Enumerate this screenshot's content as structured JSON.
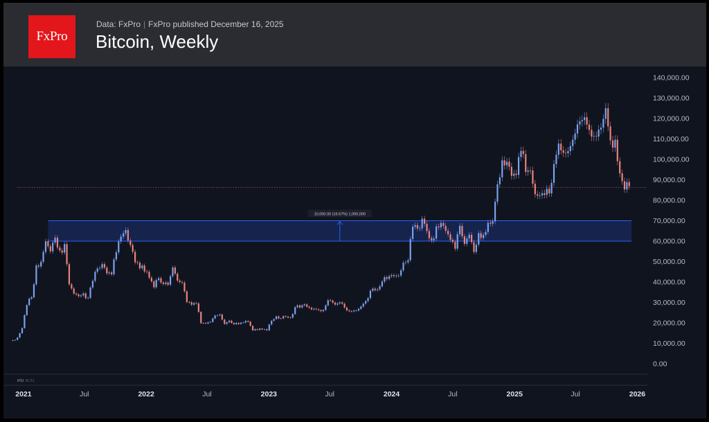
{
  "header": {
    "logo_text": "FxPro",
    "data_source": "Data: FxPro",
    "published": "FxPro published December 16, 2025",
    "title": "Bitcoin, Weekly"
  },
  "colors": {
    "background": "#10141f",
    "header_bg": "#2b2c31",
    "logo_red": "#e3161b",
    "up_candle": "#7ba2ee",
    "down_candle": "#e8847e",
    "zone_fill": "#1f3fa3",
    "zone_border": "#2b5fff",
    "price_line": "#e05555"
  },
  "chart_data": {
    "type": "candlestick",
    "title": "Bitcoin, Weekly",
    "y_tick_labels": [
      "140,000.00",
      "130,000.00",
      "120,000.00",
      "110,000.00",
      "100,000.00",
      "90,000.00",
      "80,000.00",
      "70,000.00",
      "60,000.00",
      "50,000.00",
      "40,000.00",
      "30,000.00",
      "20,000.00",
      "10,000.00",
      "0.00"
    ],
    "ylim": [
      0,
      140000
    ],
    "x_tick_labels": [
      "2021",
      "Jul",
      "2022",
      "Jul",
      "2023",
      "Jul",
      "2024",
      "Jul",
      "2025",
      "Jul",
      "2026"
    ],
    "xlim": [
      "2020-11-23",
      "2026-01-31"
    ],
    "current_price_line": 86300,
    "zone": {
      "low": 60000,
      "high": 70000,
      "start": "2021-03-15",
      "end": "2025-12-15"
    },
    "measure_label": "10,000.00 (16.67%) 1,000,000",
    "rsi_label": "RSI",
    "rsi_value": "36.51",
    "grid": false,
    "series": [
      {
        "values": [
          [
            "2020-11-30",
            11200
          ],
          [
            "2020-12-14",
            12500
          ],
          [
            "2020-12-28",
            18000
          ],
          [
            "2021-01-11",
            29000
          ],
          [
            "2021-01-25",
            33000
          ],
          [
            "2021-02-08",
            47000
          ],
          [
            "2021-02-22",
            49000
          ],
          [
            "2021-03-08",
            59000
          ],
          [
            "2021-03-22",
            56000
          ],
          [
            "2021-04-05",
            60000
          ],
          [
            "2021-04-19",
            54000
          ],
          [
            "2021-05-03",
            57000
          ],
          [
            "2021-05-17",
            38000
          ],
          [
            "2021-05-31",
            35000
          ],
          [
            "2021-06-14",
            34000
          ],
          [
            "2021-06-28",
            34500
          ],
          [
            "2021-07-12",
            31500
          ],
          [
            "2021-07-26",
            41000
          ],
          [
            "2021-08-09",
            47000
          ],
          [
            "2021-08-23",
            47500
          ],
          [
            "2021-09-06",
            45000
          ],
          [
            "2021-09-20",
            43500
          ],
          [
            "2021-10-04",
            56000
          ],
          [
            "2021-10-18",
            61000
          ],
          [
            "2021-11-01",
            64000
          ],
          [
            "2021-11-15",
            58000
          ],
          [
            "2021-11-29",
            50000
          ],
          [
            "2021-12-13",
            47000
          ],
          [
            "2021-12-27",
            46500
          ],
          [
            "2022-01-10",
            42000
          ],
          [
            "2022-01-24",
            38000
          ],
          [
            "2022-02-07",
            42000
          ],
          [
            "2022-02-21",
            39000
          ],
          [
            "2022-03-07",
            39000
          ],
          [
            "2022-03-21",
            47000
          ],
          [
            "2022-04-04",
            41000
          ],
          [
            "2022-04-18",
            39000
          ],
          [
            "2022-05-02",
            31000
          ],
          [
            "2022-05-16",
            29500
          ],
          [
            "2022-05-30",
            29500
          ],
          [
            "2022-06-13",
            20000
          ],
          [
            "2022-06-27",
            19500
          ],
          [
            "2022-07-11",
            21000
          ],
          [
            "2022-07-25",
            23500
          ],
          [
            "2022-08-08",
            24000
          ],
          [
            "2022-08-22",
            20000
          ],
          [
            "2022-09-05",
            21500
          ],
          [
            "2022-09-19",
            19500
          ],
          [
            "2022-10-03",
            19500
          ],
          [
            "2022-10-17",
            20500
          ],
          [
            "2022-10-31",
            20500
          ],
          [
            "2022-11-14",
            16500
          ],
          [
            "2022-11-28",
            17000
          ],
          [
            "2022-12-12",
            16800
          ],
          [
            "2022-12-26",
            16600
          ],
          [
            "2023-01-09",
            21000
          ],
          [
            "2023-01-23",
            23000
          ],
          [
            "2023-02-06",
            21800
          ],
          [
            "2023-02-20",
            23500
          ],
          [
            "2023-03-06",
            22000
          ],
          [
            "2023-03-20",
            28000
          ],
          [
            "2023-04-03",
            28000
          ],
          [
            "2023-04-17",
            29000
          ],
          [
            "2023-05-01",
            27500
          ],
          [
            "2023-05-15",
            27000
          ],
          [
            "2023-05-29",
            26500
          ],
          [
            "2023-06-12",
            26500
          ],
          [
            "2023-06-26",
            30500
          ],
          [
            "2023-07-10",
            30300
          ],
          [
            "2023-07-24",
            29300
          ],
          [
            "2023-08-07",
            29400
          ],
          [
            "2023-08-21",
            26000
          ],
          [
            "2023-09-04",
            25900
          ],
          [
            "2023-09-18",
            26500
          ],
          [
            "2023-10-02",
            28000
          ],
          [
            "2023-10-16",
            30000
          ],
          [
            "2023-10-30",
            35000
          ],
          [
            "2023-11-13",
            37000
          ],
          [
            "2023-11-27",
            38000
          ],
          [
            "2023-12-11",
            42000
          ],
          [
            "2023-12-25",
            42500
          ],
          [
            "2024-01-08",
            42500
          ],
          [
            "2024-01-22",
            42000
          ],
          [
            "2024-02-05",
            48000
          ],
          [
            "2024-02-19",
            52000
          ],
          [
            "2024-03-04",
            68000
          ],
          [
            "2024-03-18",
            65000
          ],
          [
            "2024-04-01",
            69000
          ],
          [
            "2024-04-15",
            64000
          ],
          [
            "2024-04-29",
            59000
          ],
          [
            "2024-05-13",
            67000
          ],
          [
            "2024-05-27",
            68000
          ],
          [
            "2024-06-10",
            66000
          ],
          [
            "2024-06-24",
            61000
          ],
          [
            "2024-07-08",
            58000
          ],
          [
            "2024-07-22",
            68000
          ],
          [
            "2024-08-05",
            58000
          ],
          [
            "2024-08-19",
            64000
          ],
          [
            "2024-09-02",
            54000
          ],
          [
            "2024-09-16",
            63000
          ],
          [
            "2024-09-30",
            62000
          ],
          [
            "2024-10-14",
            68000
          ],
          [
            "2024-10-28",
            70000
          ],
          [
            "2024-11-11",
            90000
          ],
          [
            "2024-11-25",
            97000
          ],
          [
            "2024-12-09",
            101000
          ],
          [
            "2024-12-23",
            94000
          ],
          [
            "2025-01-06",
            94500
          ],
          [
            "2025-01-20",
            105000
          ],
          [
            "2025-02-03",
            96000
          ],
          [
            "2025-02-17",
            96000
          ],
          [
            "2025-03-03",
            82000
          ],
          [
            "2025-03-17",
            84000
          ],
          [
            "2025-03-31",
            82000
          ],
          [
            "2025-04-14",
            85000
          ],
          [
            "2025-04-28",
            96000
          ],
          [
            "2025-05-12",
            106000
          ],
          [
            "2025-05-26",
            105000
          ],
          [
            "2025-06-09",
            106000
          ],
          [
            "2025-06-23",
            107000
          ],
          [
            "2025-07-07",
            118000
          ],
          [
            "2025-07-21",
            119000
          ],
          [
            "2025-08-04",
            119000
          ],
          [
            "2025-08-18",
            113000
          ],
          [
            "2025-09-01",
            111000
          ],
          [
            "2025-09-15",
            116000
          ],
          [
            "2025-09-29",
            123000
          ],
          [
            "2025-10-13",
            107000
          ],
          [
            "2025-10-27",
            110000
          ],
          [
            "2025-11-10",
            94000
          ],
          [
            "2025-11-24",
            87000
          ],
          [
            "2025-12-08",
            88500
          ],
          [
            "2025-12-15",
            86300
          ]
        ]
      }
    ]
  }
}
